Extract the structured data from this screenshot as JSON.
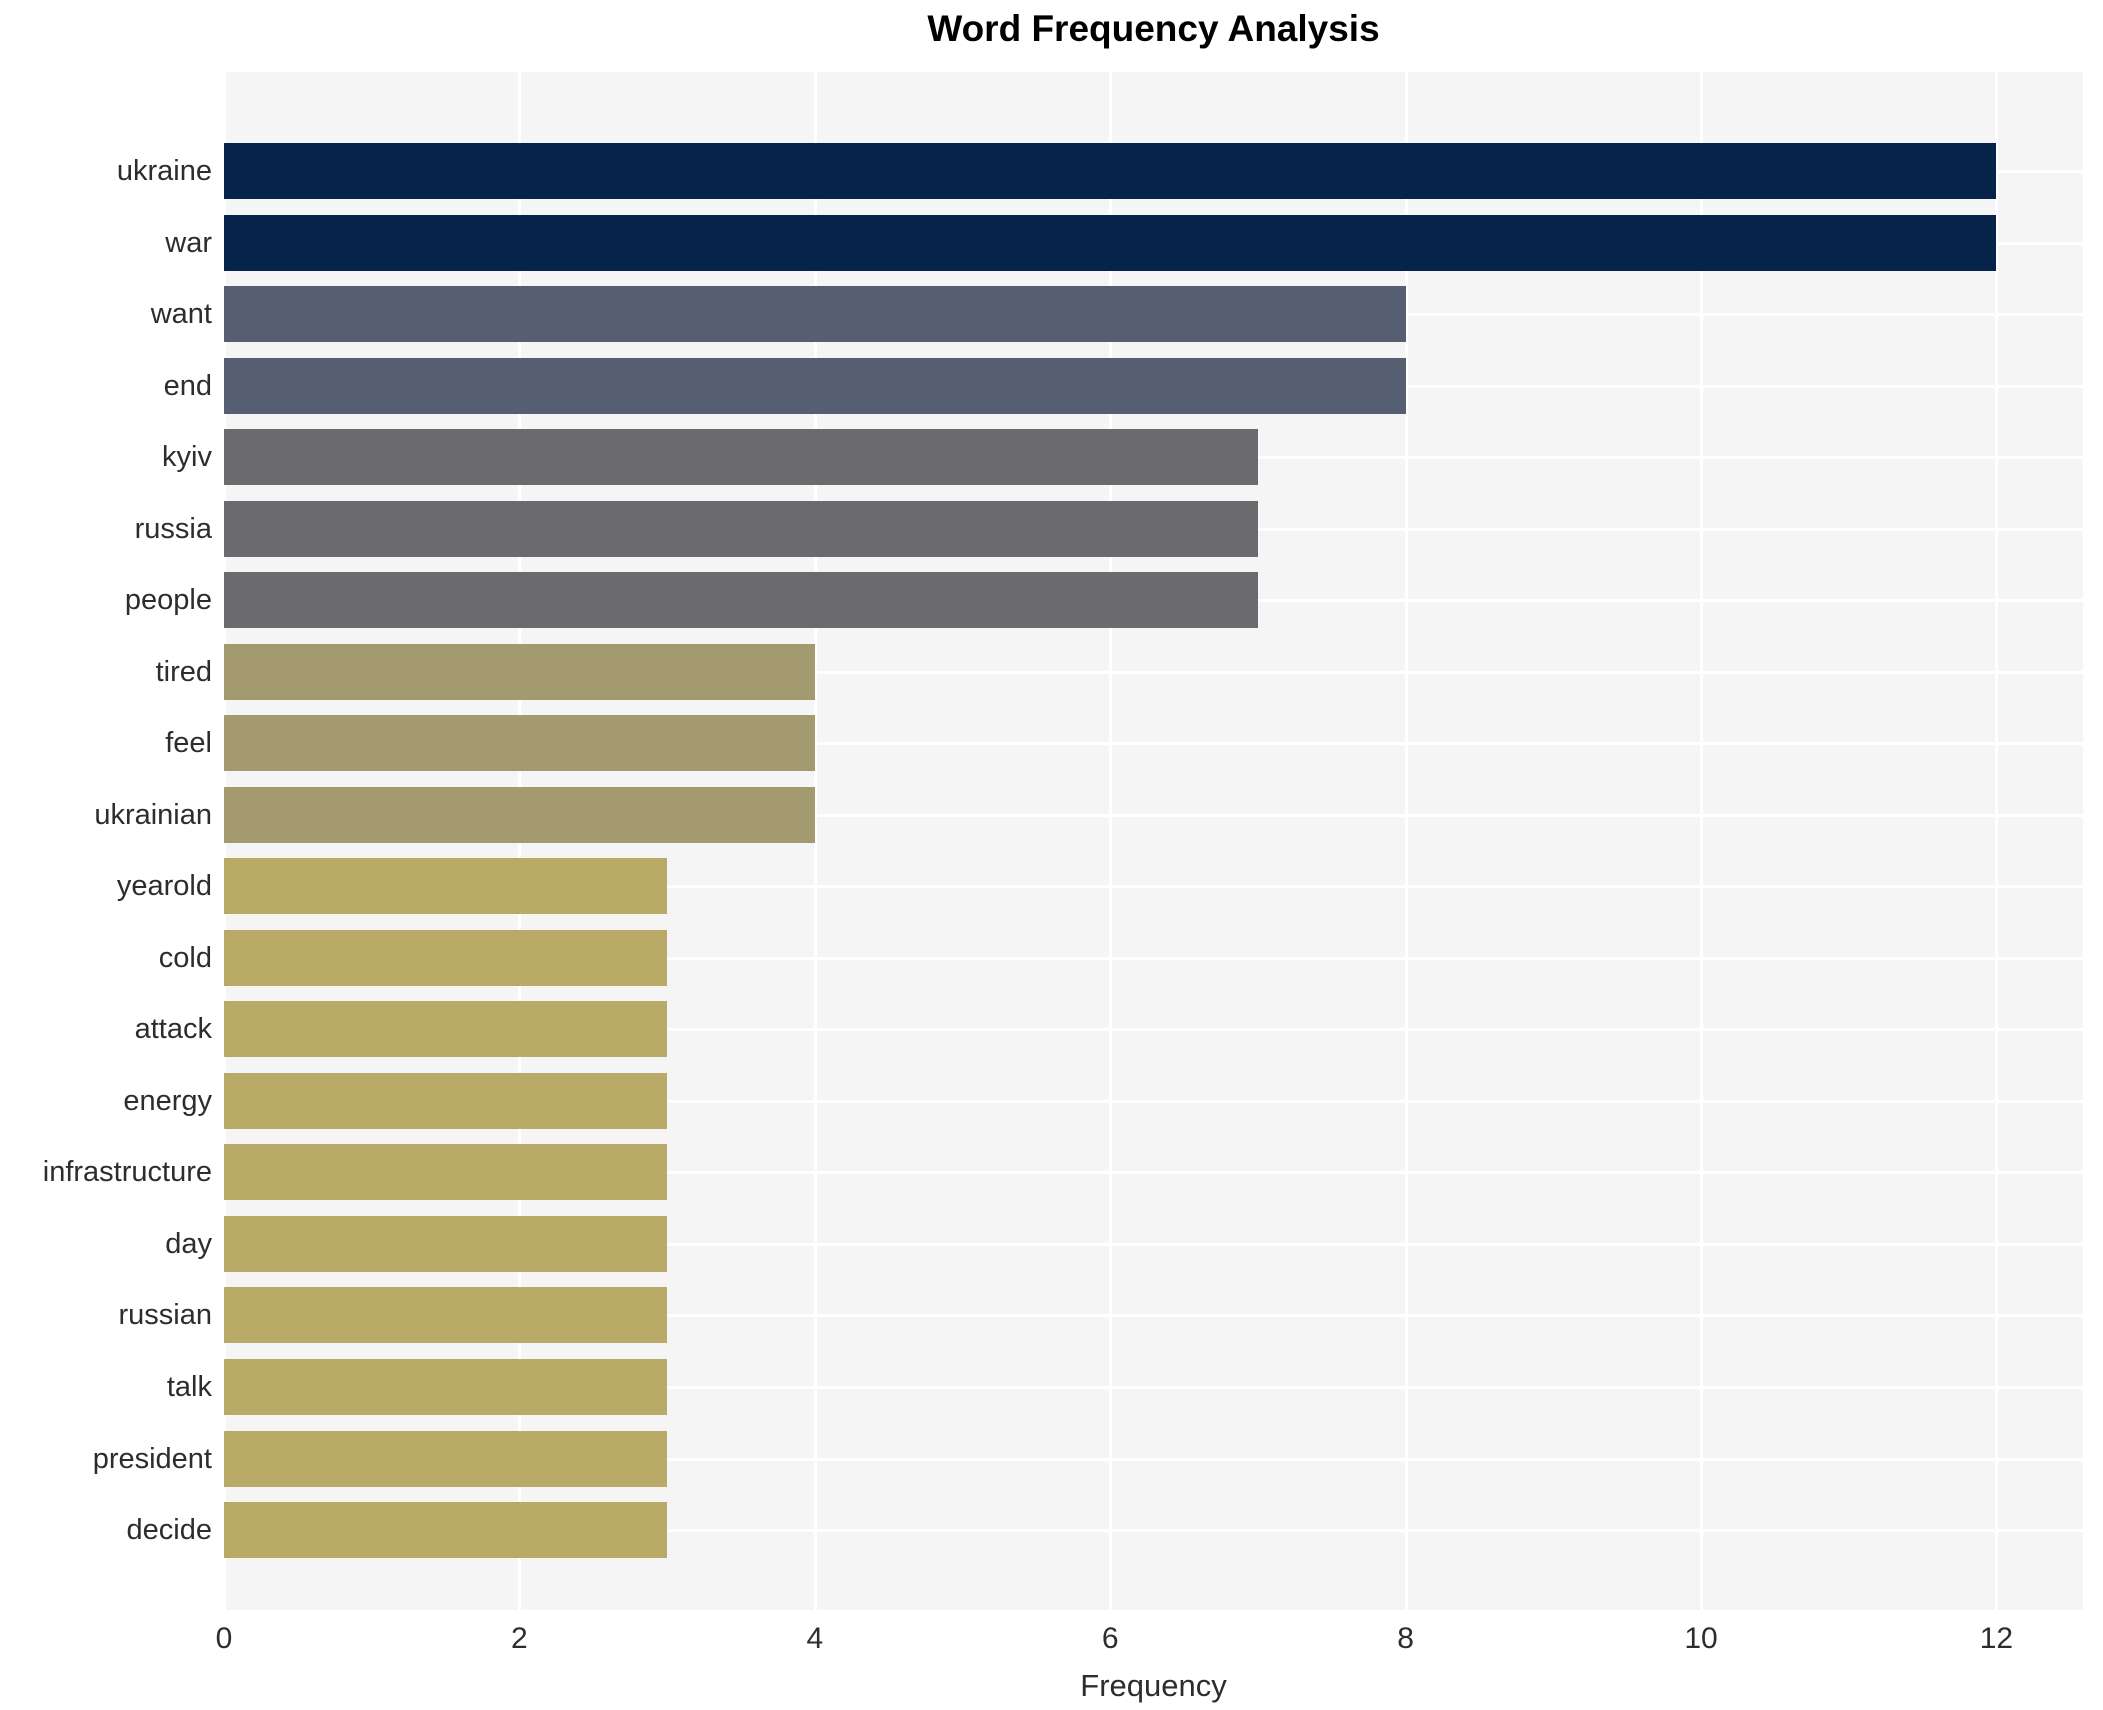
{
  "chart_data": {
    "type": "bar",
    "orientation": "horizontal",
    "title": "Word Frequency Analysis",
    "xlabel": "Frequency",
    "ylabel": "",
    "categories": [
      "ukraine",
      "war",
      "want",
      "end",
      "kyiv",
      "russia",
      "people",
      "tired",
      "feel",
      "ukrainian",
      "yearold",
      "cold",
      "attack",
      "energy",
      "infrastructure",
      "day",
      "russian",
      "talk",
      "president",
      "decide"
    ],
    "values": [
      12,
      12,
      8,
      8,
      7,
      7,
      7,
      4,
      4,
      4,
      3,
      3,
      3,
      3,
      3,
      3,
      3,
      3,
      3,
      3
    ],
    "bar_colors": [
      "#06234a",
      "#06234a",
      "#565e71",
      "#565e71",
      "#6b6b6f",
      "#6b6b6f",
      "#6b6b6f",
      "#a39a70",
      "#a39a70",
      "#a39a70",
      "#b9aa67",
      "#b9aa67",
      "#b9aa67",
      "#b9aa67",
      "#b9aa67",
      "#b9aa67",
      "#b9aa67",
      "#b9aa67",
      "#b9aa67",
      "#b9aa67"
    ],
    "xticks": [
      0,
      2,
      4,
      6,
      8,
      10,
      12
    ],
    "xlim": [
      0,
      12.58
    ],
    "grid": "on",
    "legend": "none",
    "panel_bg": "#f5f5f6",
    "grid_color": "#ffffff",
    "title_color": "#000000",
    "tick_text_color": "#2d2d2d"
  }
}
